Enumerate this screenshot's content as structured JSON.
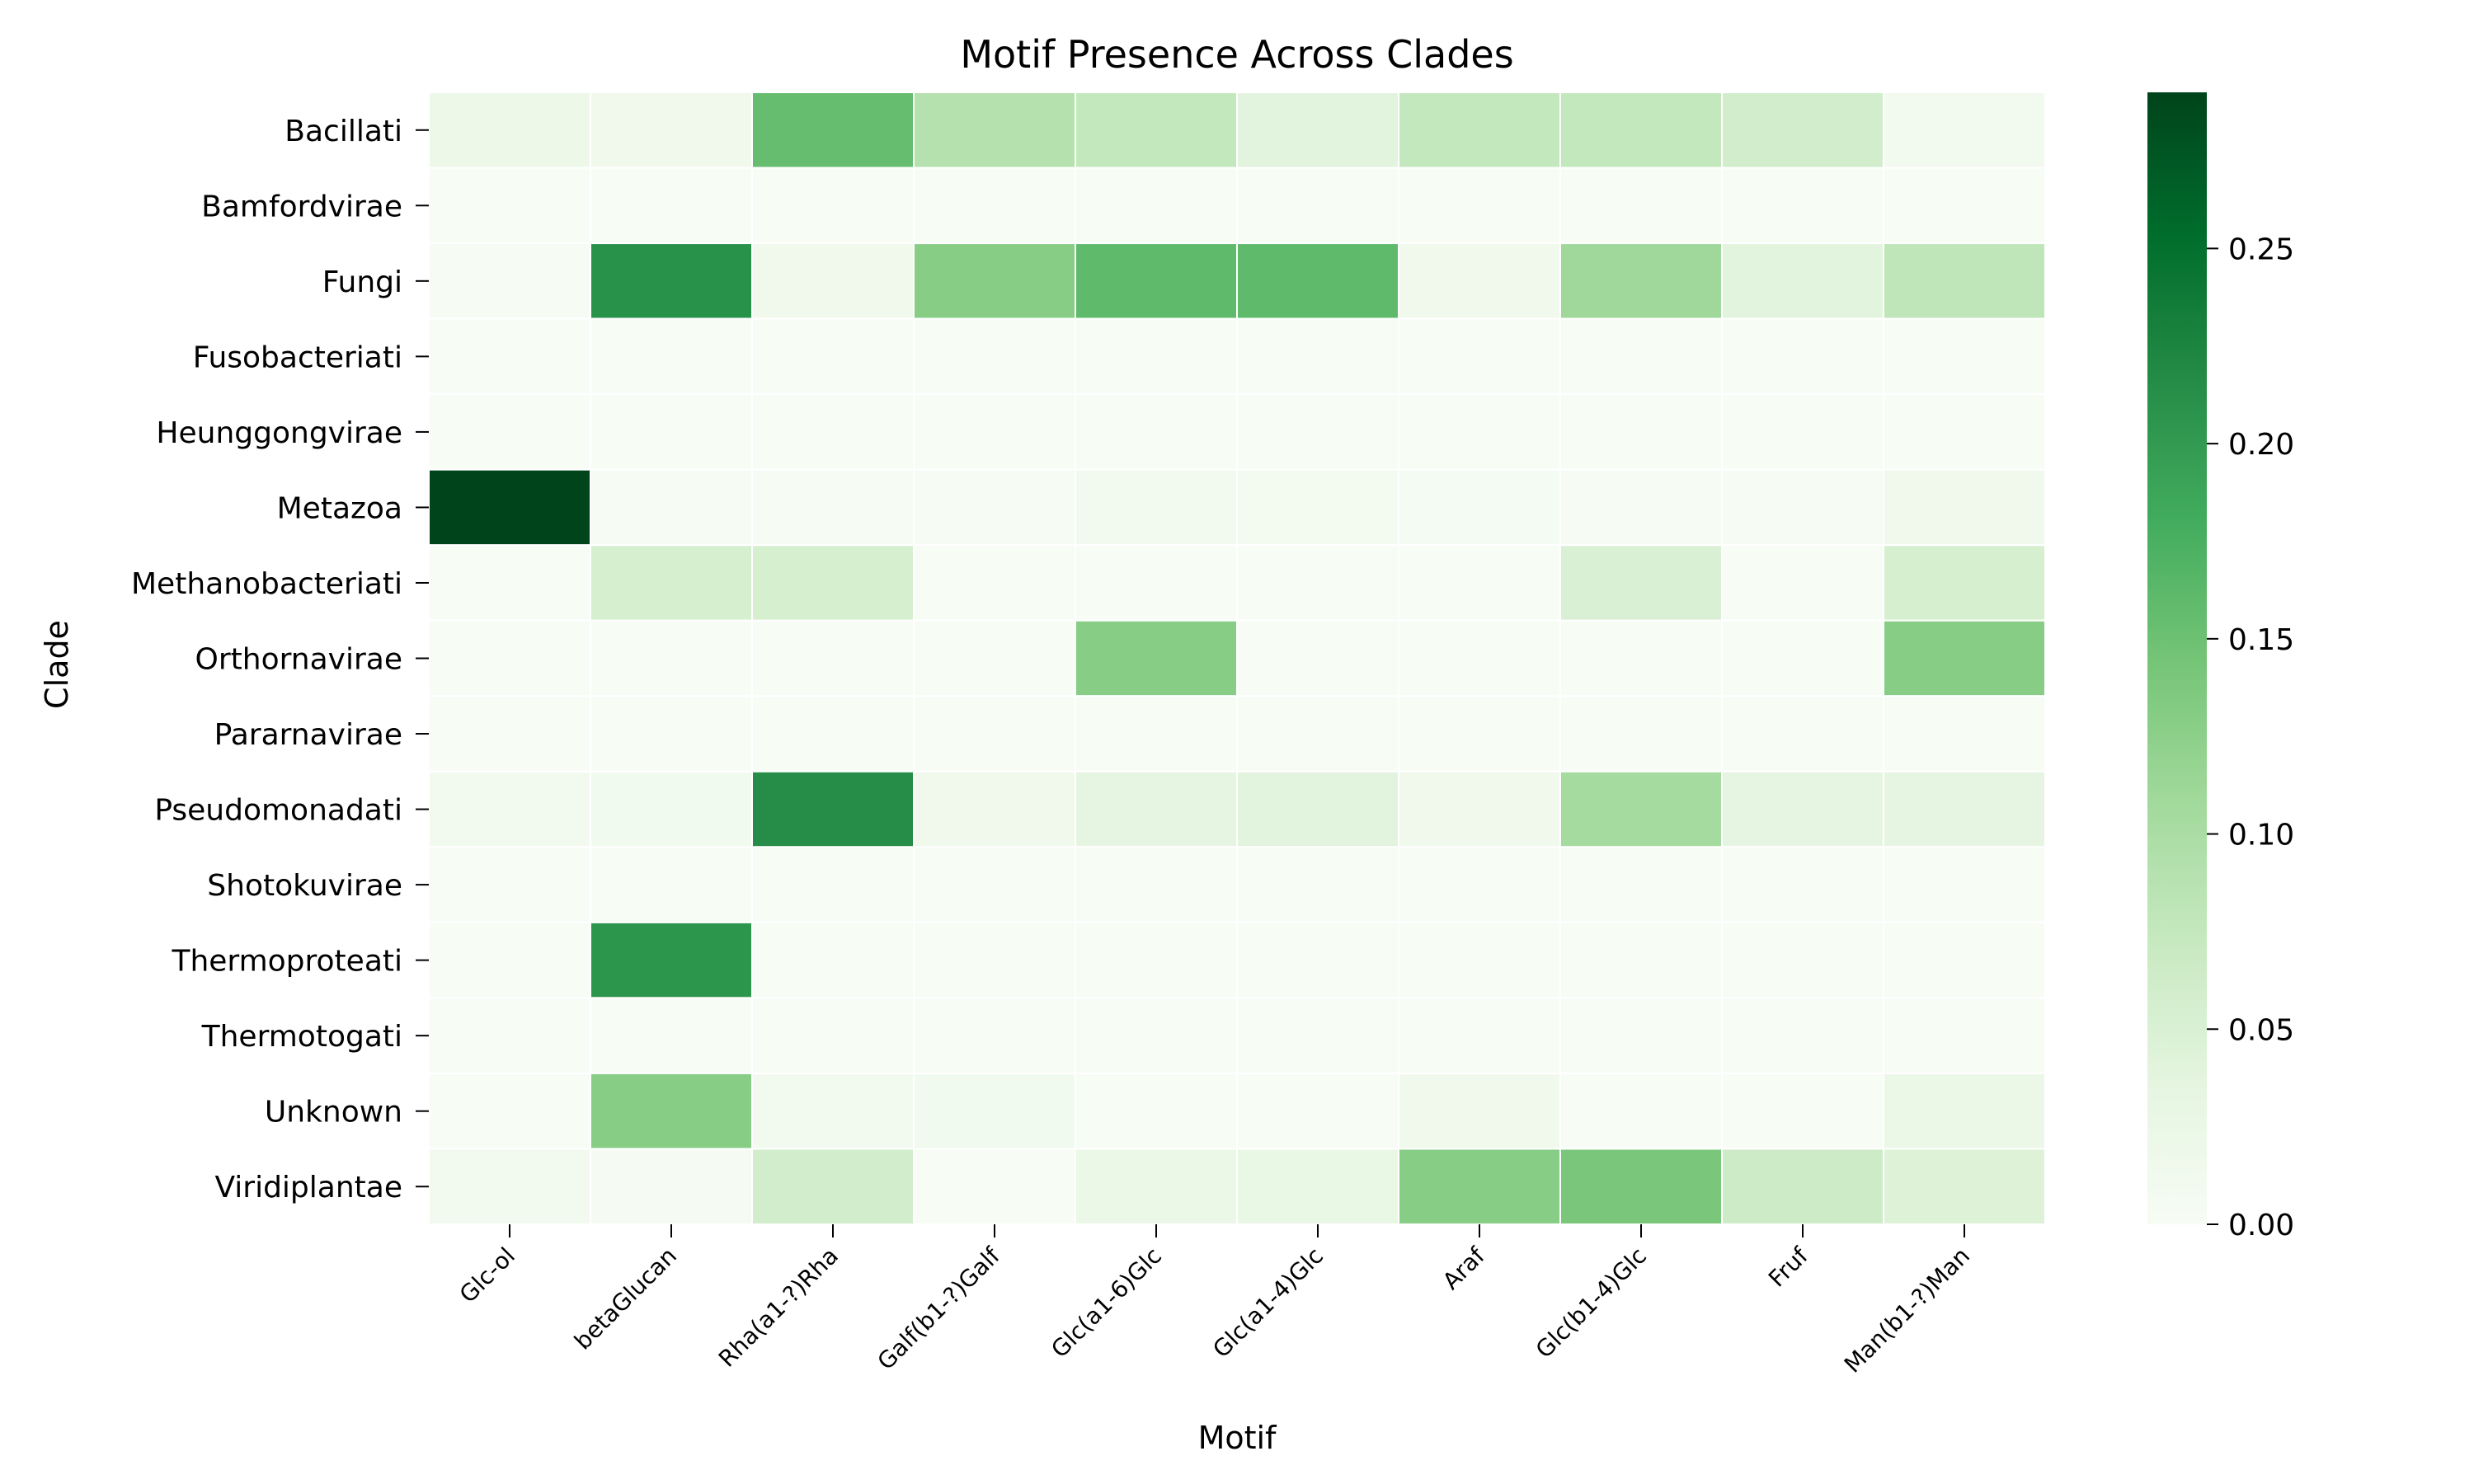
{
  "chart_data": {
    "type": "heatmap",
    "title": "Motif Presence Across Clades",
    "xlabel": "Motif",
    "ylabel": "Clade",
    "x_categories": [
      "Glc-ol",
      "betaGlucan",
      "Rha(a1-?)Rha",
      "Galf(b1-?)Galf",
      "Glc(a1-6)Glc",
      "Glc(a1-4)Glc",
      "Araf",
      "Glc(b1-4)Glc",
      "Fruf",
      "Man(b1-?)Man"
    ],
    "y_categories": [
      "Bacillati",
      "Bamfordvirae",
      "Fungi",
      "Fusobacteriati",
      "Heunggongvirae",
      "Metazoa",
      "Methanobacteriati",
      "Orthornavirae",
      "Pararnavirae",
      "Pseudomonadati",
      "Shotokuvirae",
      "Thermoproteati",
      "Thermotogati",
      "Unknown",
      "Viridiplantae"
    ],
    "values": [
      [
        0.02,
        0.015,
        0.155,
        0.09,
        0.075,
        0.04,
        0.075,
        0.075,
        0.06,
        0.01
      ],
      [
        0.0,
        0.0,
        0.0,
        0.0,
        0.0,
        0.0,
        0.0,
        0.0,
        0.0,
        0.0
      ],
      [
        0.002,
        0.21,
        0.015,
        0.13,
        0.16,
        0.16,
        0.015,
        0.11,
        0.04,
        0.08
      ],
      [
        0.0,
        0.0,
        0.0,
        0.0,
        0.0,
        0.0,
        0.0,
        0.0,
        0.0,
        0.0
      ],
      [
        0.0,
        0.0,
        0.0,
        0.0,
        0.0,
        0.0,
        0.0,
        0.0,
        0.0,
        0.0
      ],
      [
        0.29,
        0.003,
        0.003,
        0.003,
        0.01,
        0.008,
        0.006,
        0.003,
        0.003,
        0.015
      ],
      [
        0.0,
        0.055,
        0.055,
        0.0,
        0.0,
        0.0,
        0.0,
        0.05,
        0.0,
        0.055
      ],
      [
        0.0,
        0.0,
        0.0,
        0.0,
        0.13,
        0.0,
        0.0,
        0.0,
        0.0,
        0.13
      ],
      [
        0.0,
        0.0,
        0.0,
        0.0,
        0.0,
        0.0,
        0.0,
        0.0,
        0.0,
        0.0
      ],
      [
        0.01,
        0.012,
        0.215,
        0.015,
        0.035,
        0.04,
        0.015,
        0.105,
        0.035,
        0.035
      ],
      [
        0.0,
        0.0,
        0.0,
        0.0,
        0.0,
        0.0,
        0.0,
        0.0,
        0.0,
        0.0
      ],
      [
        0.0,
        0.205,
        0.0,
        0.0,
        0.0,
        0.0,
        0.0,
        0.0,
        0.0,
        0.0
      ],
      [
        0.0,
        0.0,
        0.0,
        0.0,
        0.0,
        0.0,
        0.0,
        0.0,
        0.0,
        0.0
      ],
      [
        0.0,
        0.13,
        0.01,
        0.012,
        0.0,
        0.0,
        0.015,
        0.0,
        0.0,
        0.025
      ],
      [
        0.01,
        0.005,
        0.06,
        0.0,
        0.025,
        0.028,
        0.13,
        0.14,
        0.065,
        0.045
      ]
    ],
    "vmin": 0.0,
    "vmax": 0.29,
    "colorbar_ticks": [
      "0.00",
      "0.05",
      "0.10",
      "0.15",
      "0.20",
      "0.25"
    ],
    "colormap": "Greens",
    "colormap_stops": [
      "#f7fcf5",
      "#e5f5e0",
      "#c7e9c0",
      "#a1d99b",
      "#74c476",
      "#41ab5d",
      "#238b45",
      "#006d2c",
      "#00441b"
    ],
    "cell_border_color": "#ffffff"
  }
}
